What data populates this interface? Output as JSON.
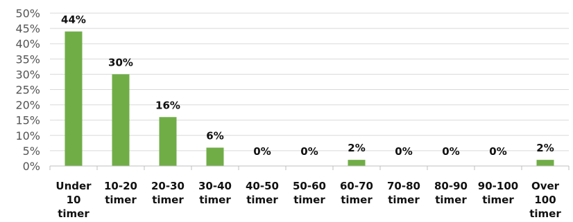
{
  "chart_data": {
    "type": "bar",
    "categories": [
      [
        "Under",
        "10",
        "timer"
      ],
      [
        "10-20",
        "timer"
      ],
      [
        "20-30",
        "timer"
      ],
      [
        "30-40",
        "timer"
      ],
      [
        "40-50",
        "timer"
      ],
      [
        "50-60",
        "timer"
      ],
      [
        "60-70",
        "timer"
      ],
      [
        "70-80",
        "timer"
      ],
      [
        "80-90",
        "timer"
      ],
      [
        "90-100",
        "timer"
      ],
      [
        "Over",
        "100",
        "timer"
      ]
    ],
    "values": [
      44,
      30,
      16,
      6,
      0,
      0,
      2,
      0,
      0,
      0,
      2
    ],
    "data_labels": [
      "44%",
      "30%",
      "16%",
      "6%",
      "0%",
      "0%",
      "2%",
      "0%",
      "0%",
      "0%",
      "2%"
    ],
    "y_ticks": [
      "0%",
      "5%",
      "10%",
      "15%",
      "20%",
      "25%",
      "30%",
      "35%",
      "40%",
      "45%",
      "50%"
    ],
    "ylim": [
      0,
      50
    ],
    "grid": true,
    "bar_color": "#70AD47",
    "grid_color": "#D9D9D9"
  }
}
